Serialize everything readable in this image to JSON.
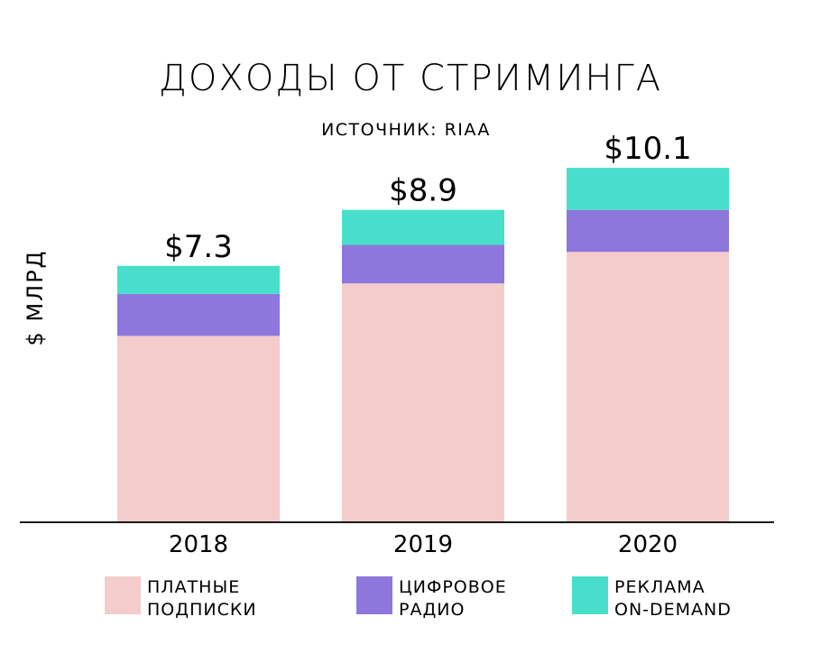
{
  "chart_data": {
    "type": "bar",
    "stacked": true,
    "title": "ДОХОДЫ ОТ СТРИМИНГА",
    "subtitle": "ИСТОЧНИК: RIAA",
    "xlabel": "",
    "ylabel": "$ МЛРД",
    "categories": [
      "2018",
      "2019",
      "2020"
    ],
    "totals": [
      7.3,
      8.9,
      10.1
    ],
    "total_labels": [
      "$7.3",
      "$8.9",
      "$10.1"
    ],
    "ylim": [
      0,
      10.5
    ],
    "grid": false,
    "legend_position": "bottom",
    "series": [
      {
        "name": "ПЛАТНЫЕ ПОДПИСКИ",
        "legend_lines": [
          "ПЛАТНЫЕ",
          "ПОДПИСКИ"
        ],
        "color": "#f4cccc",
        "values": [
          5.3,
          6.8,
          7.7
        ]
      },
      {
        "name": "ЦИФРОВОЕ РАДИО",
        "legend_lines": [
          "ЦИФРОВОЕ",
          "РАДИО"
        ],
        "color": "#8e77dc",
        "values": [
          1.2,
          1.1,
          1.2
        ]
      },
      {
        "name": "РЕКЛАМА ON-DEMAND",
        "legend_lines": [
          "РЕКЛАМА",
          "ON-DEMAND"
        ],
        "color": "#47dfcb",
        "values": [
          0.8,
          1.0,
          1.2
        ]
      }
    ]
  }
}
